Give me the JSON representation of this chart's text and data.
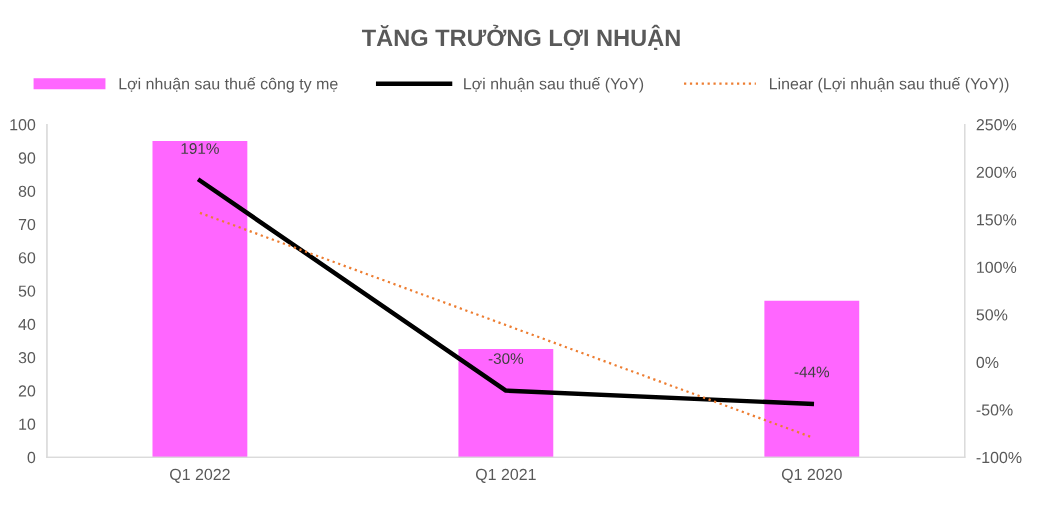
{
  "chart_data": {
    "type": "bar",
    "title": "TĂNG TRƯỞNG LỢI NHUẬN",
    "categories": [
      "Q1 2022",
      "Q1 2021",
      "Q1 2020"
    ],
    "series": [
      {
        "name": "Lợi nhuận sau thuế công ty mẹ",
        "color": "#ff66ff",
        "values": [
          95,
          32.5,
          47
        ]
      },
      {
        "name": "Lợi nhuận sau thuế (YoY)",
        "type": "line",
        "axis": "y2",
        "color": "#000000",
        "line_style": "solid",
        "values": [
          191,
          -30,
          -44
        ],
        "value_labels": [
          "191%",
          "-30%",
          "-44%"
        ]
      },
      {
        "name": "Linear (Lợi nhuận sau thuế (YoY))",
        "type": "line",
        "axis": "y2",
        "color": "#ed7d31",
        "line_style": "dotted",
        "values": [
          157,
          39,
          -79
        ]
      }
    ],
    "ylim": [
      0,
      100
    ],
    "yticks": [
      0,
      10,
      20,
      30,
      40,
      50,
      60,
      70,
      80,
      90,
      100
    ],
    "y2lim": [
      -100,
      250
    ],
    "y2ticks": [
      {
        "value": -100,
        "label": "-100%"
      },
      {
        "value": -50,
        "label": "-50%"
      },
      {
        "value": 0,
        "label": "0%"
      },
      {
        "value": 50,
        "label": "50%"
      },
      {
        "value": 100,
        "label": "100%"
      },
      {
        "value": 150,
        "label": "150%"
      },
      {
        "value": 200,
        "label": "200%"
      },
      {
        "value": 250,
        "label": "250%"
      }
    ],
    "grid": false,
    "legend": "top"
  }
}
